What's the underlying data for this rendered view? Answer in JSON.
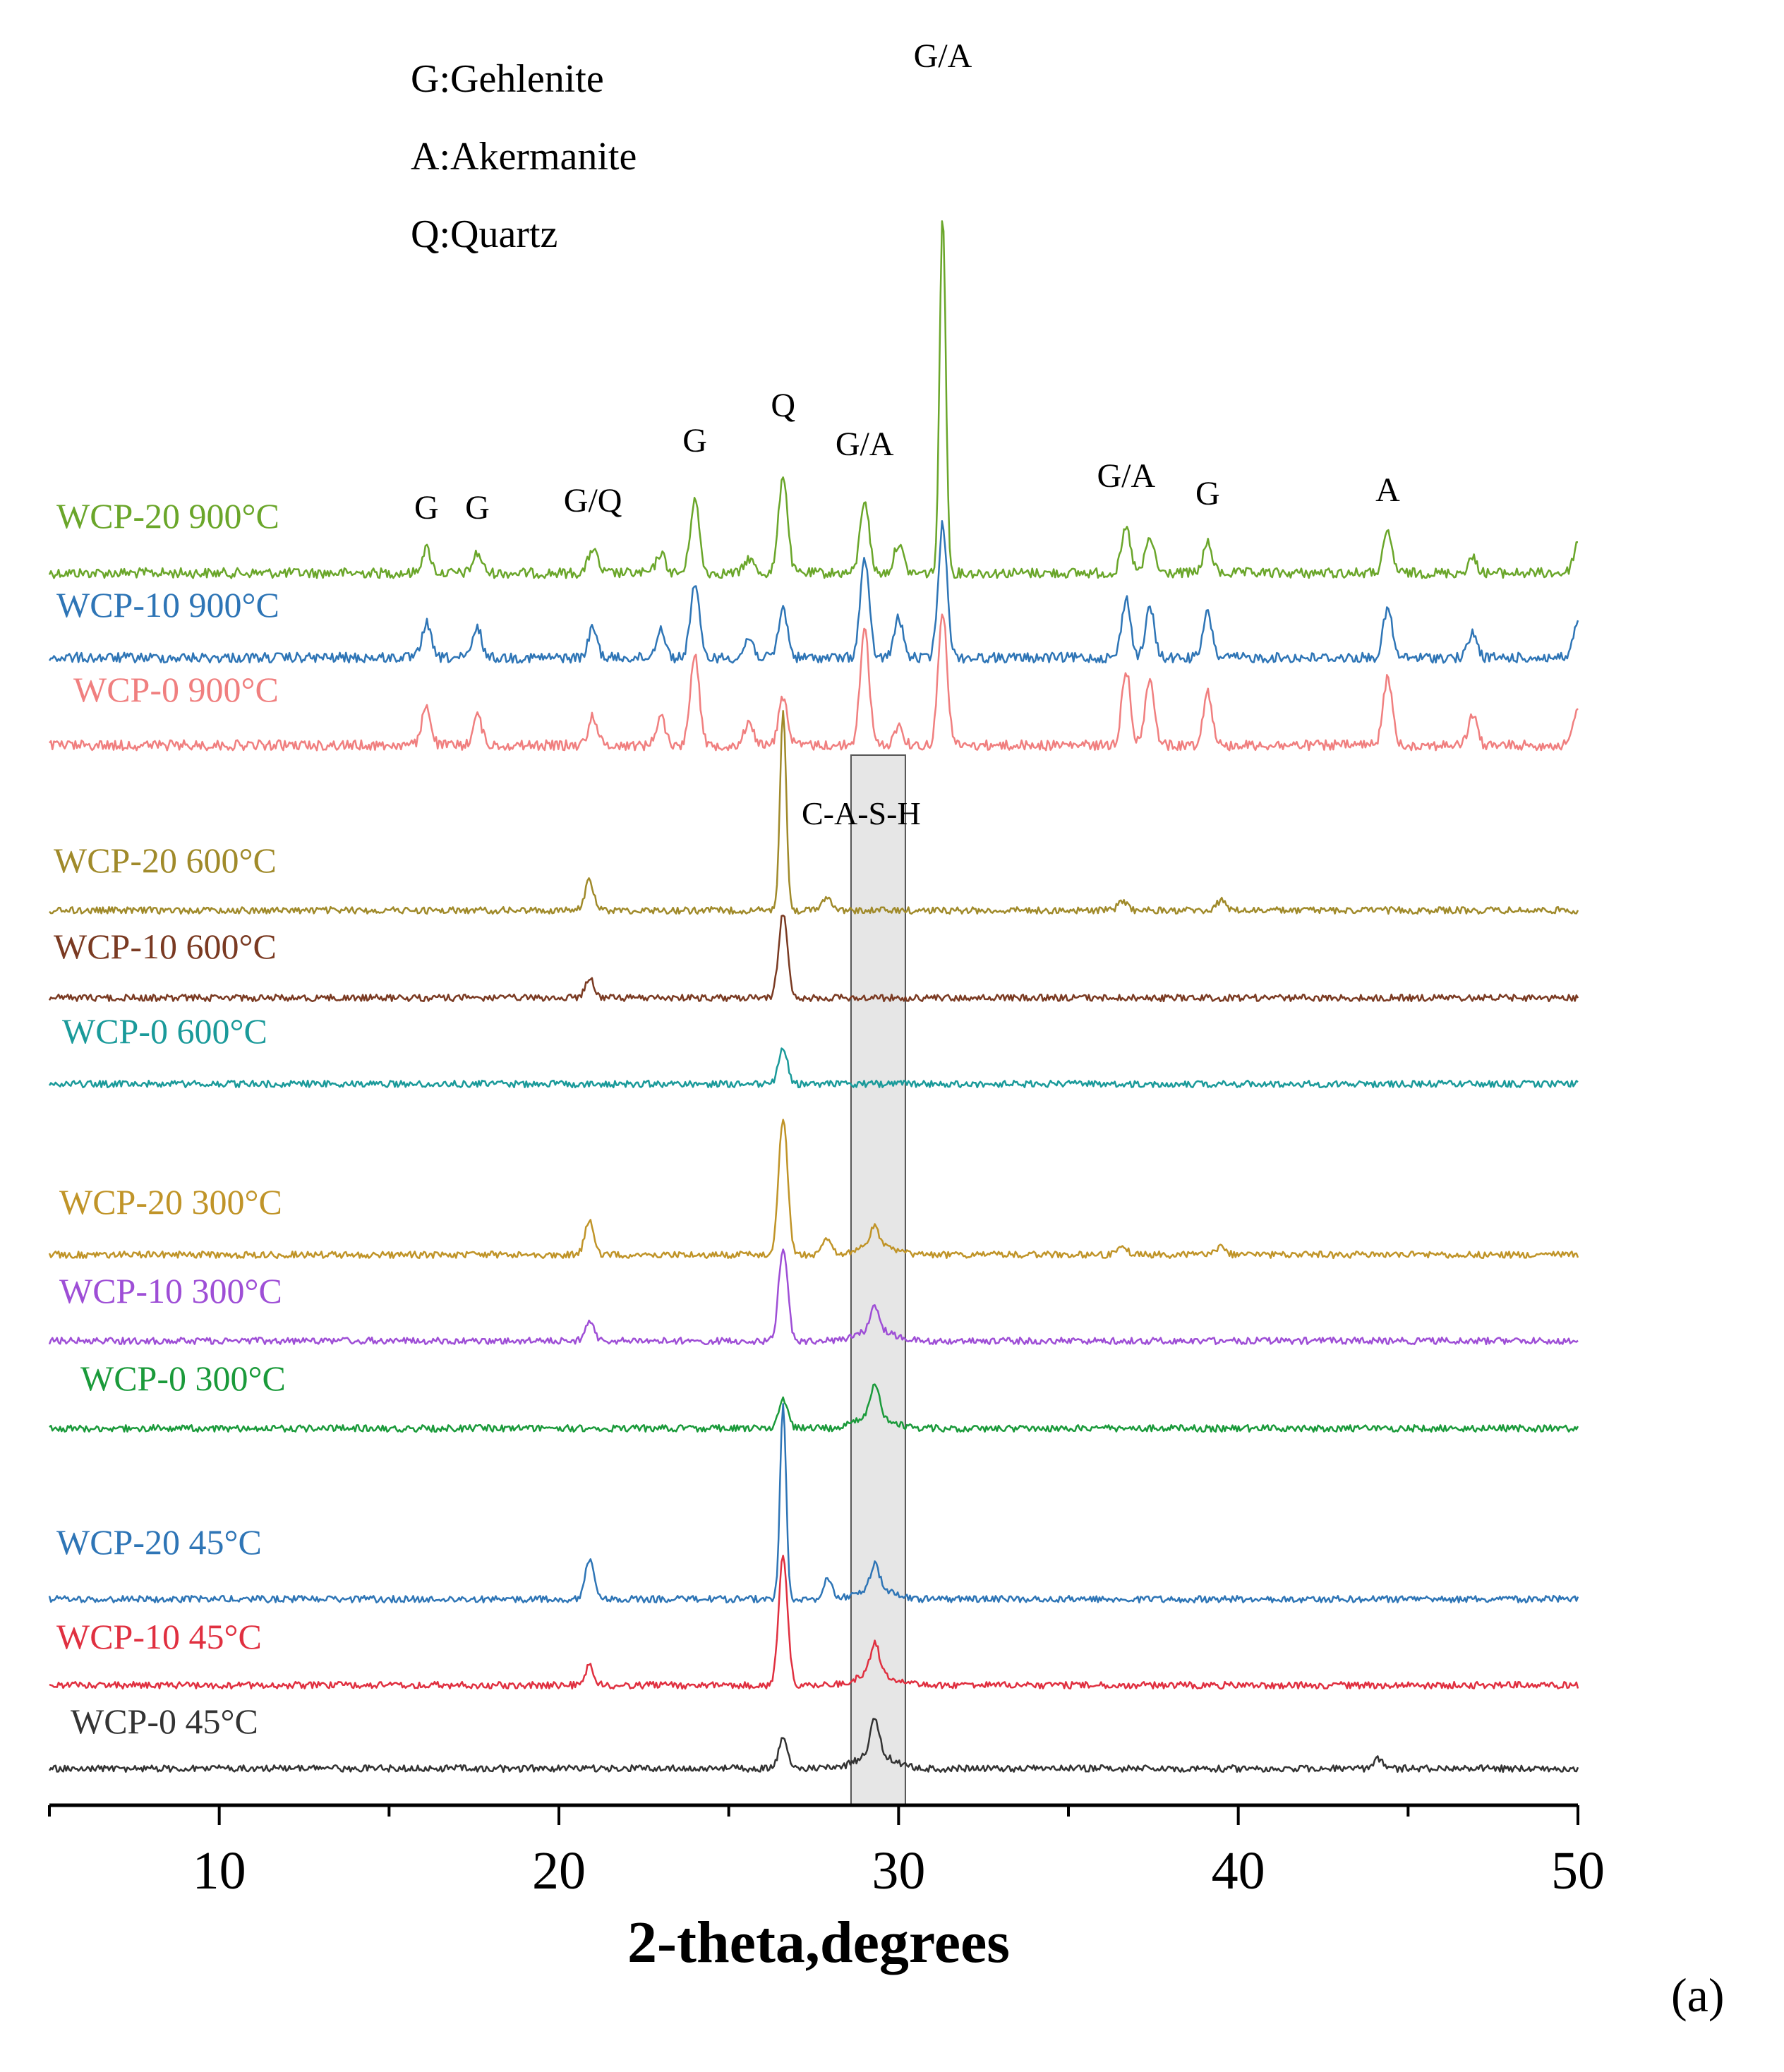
{
  "chart_data": {
    "type": "line",
    "title": "",
    "xlabel": "2-theta,degrees",
    "ylabel": "",
    "xlim": [
      5,
      50
    ],
    "x_ticks": [
      10,
      20,
      30,
      40,
      50
    ],
    "panel_label": "(a)",
    "legend_text": [
      "G:Gehlenite",
      "A:Akermanite",
      "Q:Quartz"
    ],
    "highlight_region": {
      "label": "C-A-S-H",
      "x_range": [
        28.6,
        30.2
      ],
      "color": "#e6e6e6"
    },
    "peak_annotations": [
      {
        "label": "G",
        "x": 16.1
      },
      {
        "label": "G",
        "x": 17.6
      },
      {
        "label": "G/Q",
        "x": 21.0
      },
      {
        "label": "G",
        "x": 24.0
      },
      {
        "label": "Q",
        "x": 26.6
      },
      {
        "label": "G/A",
        "x": 29.0
      },
      {
        "label": "G/A",
        "x": 31.3
      },
      {
        "label": "G/A",
        "x": 36.7
      },
      {
        "label": "G",
        "x": 39.1
      },
      {
        "label": "A",
        "x": 44.4
      }
    ],
    "series": [
      {
        "name": "WCP-20 900°C",
        "color": "#6aa62a",
        "amplitude": "high",
        "peaks": [
          [
            16.1,
            0.25
          ],
          [
            17.6,
            0.2
          ],
          [
            21.0,
            0.25
          ],
          [
            23.0,
            0.2
          ],
          [
            24.0,
            0.75
          ],
          [
            25.6,
            0.15
          ],
          [
            26.6,
            1.0
          ],
          [
            29.0,
            0.75
          ],
          [
            30.0,
            0.3
          ],
          [
            31.3,
            3.65
          ],
          [
            36.7,
            0.45
          ],
          [
            37.4,
            0.35
          ],
          [
            39.1,
            0.3
          ],
          [
            44.4,
            0.4
          ],
          [
            46.9,
            0.15
          ],
          [
            50.0,
            0.3
          ]
        ]
      },
      {
        "name": "WCP-10 900°C",
        "color": "#2e75b6",
        "amplitude": "high",
        "peaks": [
          [
            16.1,
            0.35
          ],
          [
            17.6,
            0.3
          ],
          [
            21.0,
            0.3
          ],
          [
            23.0,
            0.3
          ],
          [
            24.0,
            0.75
          ],
          [
            25.6,
            0.2
          ],
          [
            26.6,
            0.5
          ],
          [
            29.0,
            1.0
          ],
          [
            30.0,
            0.4
          ],
          [
            31.3,
            1.35
          ],
          [
            36.7,
            0.6
          ],
          [
            37.4,
            0.5
          ],
          [
            39.1,
            0.45
          ],
          [
            44.4,
            0.5
          ],
          [
            46.9,
            0.25
          ],
          [
            50.0,
            0.35
          ]
        ]
      },
      {
        "name": "WCP-0 900°C",
        "color": "#f07f7f",
        "amplitude": "high",
        "peaks": [
          [
            16.1,
            0.4
          ],
          [
            17.6,
            0.3
          ],
          [
            21.0,
            0.3
          ],
          [
            23.0,
            0.3
          ],
          [
            24.0,
            0.95
          ],
          [
            25.6,
            0.25
          ],
          [
            26.6,
            0.5
          ],
          [
            29.0,
            1.2
          ],
          [
            30.0,
            0.2
          ],
          [
            31.3,
            1.35
          ],
          [
            36.7,
            0.75
          ],
          [
            37.4,
            0.7
          ],
          [
            39.1,
            0.55
          ],
          [
            44.4,
            0.7
          ],
          [
            46.9,
            0.3
          ],
          [
            50.0,
            0.35
          ]
        ]
      },
      {
        "name": "WCP-20 600°C",
        "color": "#a08a2a",
        "amplitude": "low",
        "peaks": [
          [
            20.9,
            0.3
          ],
          [
            26.6,
            2.05
          ],
          [
            27.9,
            0.15
          ],
          [
            36.6,
            0.1
          ],
          [
            39.5,
            0.1
          ]
        ]
      },
      {
        "name": "WCP-10 600°C",
        "color": "#7a3a22",
        "amplitude": "low",
        "peaks": [
          [
            20.9,
            0.2
          ],
          [
            26.6,
            0.85
          ]
        ]
      },
      {
        "name": "WCP-0 600°C",
        "color": "#1a9a9a",
        "amplitude": "low",
        "peaks": [
          [
            26.6,
            0.35
          ]
        ]
      },
      {
        "name": "WCP-20 300°C",
        "color": "#c09428",
        "amplitude": "low",
        "peaks": [
          [
            20.9,
            0.35
          ],
          [
            26.6,
            1.4
          ],
          [
            27.9,
            0.15
          ],
          [
            29.3,
            0.2
          ],
          [
            36.6,
            0.1
          ],
          [
            39.5,
            0.1
          ]
        ]
      },
      {
        "name": "WCP-10 300°C",
        "color": "#9e4ed6",
        "amplitude": "low",
        "peaks": [
          [
            20.9,
            0.2
          ],
          [
            26.6,
            0.95
          ],
          [
            29.3,
            0.25
          ]
        ]
      },
      {
        "name": "WCP-0 300°C",
        "color": "#1a9a3a",
        "amplitude": "low",
        "peaks": [
          [
            26.6,
            0.3
          ],
          [
            29.3,
            0.3
          ]
        ]
      },
      {
        "name": "WCP-20 45°C",
        "color": "#2e75b6",
        "amplitude": "low",
        "peaks": [
          [
            20.9,
            0.4
          ],
          [
            26.6,
            1.95
          ],
          [
            27.9,
            0.2
          ],
          [
            29.3,
            0.25
          ]
        ]
      },
      {
        "name": "WCP-10 45°C",
        "color": "#e03040",
        "amplitude": "low",
        "peaks": [
          [
            20.9,
            0.2
          ],
          [
            26.6,
            1.3
          ],
          [
            29.3,
            0.3
          ]
        ]
      },
      {
        "name": "WCP-0 45°C",
        "color": "#333333",
        "amplitude": "low",
        "peaks": [
          [
            26.6,
            0.3
          ],
          [
            29.3,
            0.35
          ],
          [
            44.1,
            0.1
          ]
        ]
      }
    ]
  }
}
